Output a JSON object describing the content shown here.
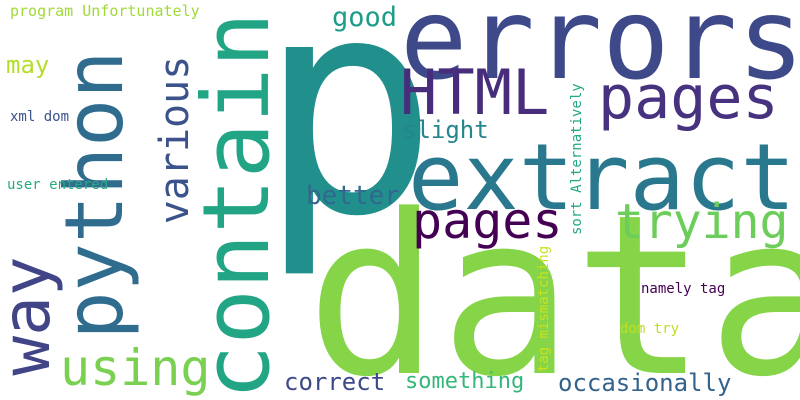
{
  "words": [
    {
      "text": "p",
      "color": "#21908d"
    },
    {
      "text": "errors",
      "color": "#3e4989"
    },
    {
      "text": "data",
      "color": "#86d549"
    },
    {
      "text": "extract",
      "color": "#2a788e"
    },
    {
      "text": "contain",
      "color": "#21a585"
    },
    {
      "text": "python",
      "color": "#2f6c8e"
    },
    {
      "text": "way",
      "color": "#414487"
    },
    {
      "text": "pages",
      "color": "#46327e"
    },
    {
      "text": "pages",
      "color": "#440154"
    },
    {
      "text": "HTML",
      "color": "#472d7b"
    },
    {
      "text": "various",
      "color": "#3b528b"
    },
    {
      "text": "trying",
      "color": "#6ccd5a"
    },
    {
      "text": "using",
      "color": "#7ad151"
    },
    {
      "text": "good",
      "color": "#1e9c89"
    },
    {
      "text": "slight",
      "color": "#25858e"
    },
    {
      "text": "better",
      "color": "#31688e"
    },
    {
      "text": "correct",
      "color": "#3e4989"
    },
    {
      "text": "something",
      "color": "#35b779"
    },
    {
      "text": "occasionally",
      "color": "#33638d"
    },
    {
      "text": "may",
      "color": "#b5de2b"
    },
    {
      "text": "program Unfortunately",
      "color": "#a0da39"
    },
    {
      "text": "xml dom",
      "color": "#3b528b"
    },
    {
      "text": "user entered",
      "color": "#25ab82"
    },
    {
      "text": "sort Alternatively",
      "color": "#22a884"
    },
    {
      "text": "tag mismatching",
      "color": "#cae11f"
    },
    {
      "text": "namely tag",
      "color": "#440154"
    },
    {
      "text": "dom try",
      "color": "#bddf26"
    }
  ]
}
